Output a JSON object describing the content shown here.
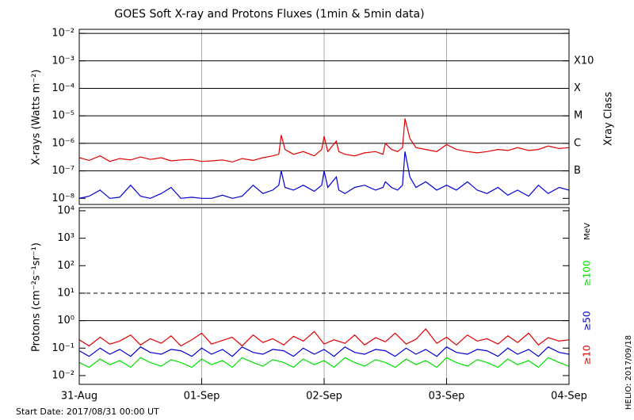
{
  "chart_data": [
    {
      "type": "line",
      "title": "GOES Soft X-ray and Protons Fluxes   (1min & 5min data)",
      "y_label": "X-rays (Watts m⁻²)",
      "right_label": "Xray Class",
      "log_y": true,
      "grid": true,
      "xlim": [
        0,
        4
      ],
      "ylim": [
        6e-09,
        0.014
      ],
      "yticks": [
        {
          "value": 0.01,
          "label": "10⁻²"
        },
        {
          "value": 0.001,
          "label": "10⁻³"
        },
        {
          "value": 0.0001,
          "label": "10⁻⁴"
        },
        {
          "value": 1e-05,
          "label": "10⁻⁵"
        },
        {
          "value": 1e-06,
          "label": "10⁻⁶"
        },
        {
          "value": 1e-07,
          "label": "10⁻⁷"
        },
        {
          "value": 1e-08,
          "label": "10⁻⁸"
        }
      ],
      "class_labels": [
        {
          "text": "X10",
          "y": 0.001
        },
        {
          "text": "X",
          "y": 0.0001
        },
        {
          "text": "M",
          "y": 1e-05
        },
        {
          "text": "C",
          "y": 1e-06
        },
        {
          "text": "B",
          "y": 1e-07
        }
      ],
      "x": [
        0,
        0.08,
        0.17,
        0.25,
        0.33,
        0.42,
        0.5,
        0.58,
        0.67,
        0.75,
        0.83,
        0.92,
        1.0,
        1.08,
        1.17,
        1.25,
        1.33,
        1.42,
        1.5,
        1.58,
        1.63,
        1.65,
        1.68,
        1.75,
        1.83,
        1.92,
        1.98,
        2.0,
        2.03,
        2.1,
        2.12,
        2.17,
        2.25,
        2.33,
        2.42,
        2.48,
        2.5,
        2.55,
        2.6,
        2.64,
        2.66,
        2.7,
        2.75,
        2.83,
        2.92,
        3.0,
        3.08,
        3.17,
        3.25,
        3.33,
        3.42,
        3.5,
        3.58,
        3.67,
        3.75,
        3.83,
        3.92,
        4.0
      ],
      "series": [
        {
          "color": "#e00000",
          "values": [
            3e-07,
            2.4e-07,
            3.5e-07,
            2.2e-07,
            2.8e-07,
            2.5e-07,
            3.2e-07,
            2.6e-07,
            3e-07,
            2.3e-07,
            2.5e-07,
            2.6e-07,
            2.2e-07,
            2.3e-07,
            2.5e-07,
            2.1e-07,
            2.8e-07,
            2.4e-07,
            3e-07,
            3.5e-07,
            4e-07,
            2e-06,
            6e-07,
            4e-07,
            5e-07,
            3.5e-07,
            6e-07,
            1.8e-06,
            5e-07,
            1.2e-06,
            5e-07,
            4e-07,
            3.5e-07,
            4.5e-07,
            5e-07,
            4e-07,
            1e-06,
            6e-07,
            5e-07,
            7e-07,
            8e-06,
            1.5e-06,
            7e-07,
            6e-07,
            5e-07,
            9e-07,
            6e-07,
            5e-07,
            4.5e-07,
            5e-07,
            6e-07,
            5.5e-07,
            7e-07,
            5.5e-07,
            6e-07,
            8e-07,
            6.5e-07,
            7e-07
          ]
        },
        {
          "color": "#0000d0",
          "values": [
            1e-08,
            1.2e-08,
            2e-08,
            1e-08,
            1.1e-08,
            3e-08,
            1.2e-08,
            1e-08,
            1.5e-08,
            2.5e-08,
            1e-08,
            1.1e-08,
            1e-08,
            1e-08,
            1.3e-08,
            1e-08,
            1.2e-08,
            3e-08,
            1.5e-08,
            2e-08,
            3e-08,
            1e-07,
            2.5e-08,
            2e-08,
            3e-08,
            1.8e-08,
            3e-08,
            1e-07,
            2.5e-08,
            6e-08,
            2e-08,
            1.5e-08,
            2.5e-08,
            3e-08,
            2e-08,
            2.5e-08,
            4e-08,
            2.5e-08,
            2e-08,
            3e-08,
            5e-07,
            6e-08,
            2.5e-08,
            4e-08,
            2e-08,
            3e-08,
            2e-08,
            4e-08,
            2e-08,
            1.5e-08,
            2.5e-08,
            1.3e-08,
            2e-08,
            1.2e-08,
            3e-08,
            1.5e-08,
            2.5e-08,
            2e-08
          ]
        }
      ]
    },
    {
      "type": "line",
      "y_label": "Protons (cm⁻²s⁻¹sr⁻¹)",
      "legend_title": "MeV",
      "log_y": true,
      "reference_lines": [
        {
          "value": 10,
          "style": "dashed"
        },
        {
          "value": 1,
          "style": "solid"
        }
      ],
      "xlim": [
        0,
        4
      ],
      "xticks": [
        {
          "value": 0,
          "label": "31-Aug"
        },
        {
          "value": 1,
          "label": "01-Sep"
        },
        {
          "value": 2,
          "label": "02-Sep"
        },
        {
          "value": 3,
          "label": "03-Sep"
        },
        {
          "value": 4,
          "label": "04-Sep"
        }
      ],
      "ylim": [
        0.0048,
        13000
      ],
      "yticks": [
        {
          "value": 10000,
          "label": "10⁴"
        },
        {
          "value": 1000,
          "label": "10³"
        },
        {
          "value": 100,
          "label": "10²"
        },
        {
          "value": 10,
          "label": "10¹"
        },
        {
          "value": 1,
          "label": "10⁰"
        },
        {
          "value": 0.1,
          "label": "10⁻¹"
        },
        {
          "value": 0.01,
          "label": "10⁻²"
        }
      ],
      "x": [
        0,
        0.08,
        0.17,
        0.25,
        0.33,
        0.42,
        0.5,
        0.58,
        0.67,
        0.75,
        0.83,
        0.92,
        1,
        1.08,
        1.17,
        1.25,
        1.33,
        1.42,
        1.5,
        1.58,
        1.67,
        1.75,
        1.83,
        1.92,
        2,
        2.08,
        2.17,
        2.25,
        2.33,
        2.42,
        2.5,
        2.58,
        2.67,
        2.75,
        2.83,
        2.92,
        3,
        3.08,
        3.17,
        3.25,
        3.33,
        3.42,
        3.5,
        3.58,
        3.67,
        3.75,
        3.83,
        3.92,
        4
      ],
      "series": [
        {
          "name": "≥100",
          "color": "#00e000",
          "values": [
            0.03,
            0.02,
            0.04,
            0.025,
            0.035,
            0.02,
            0.045,
            0.03,
            0.022,
            0.038,
            0.03,
            0.02,
            0.04,
            0.025,
            0.035,
            0.02,
            0.045,
            0.03,
            0.022,
            0.038,
            0.03,
            0.02,
            0.04,
            0.025,
            0.035,
            0.02,
            0.045,
            0.03,
            0.022,
            0.038,
            0.03,
            0.02,
            0.04,
            0.025,
            0.035,
            0.02,
            0.045,
            0.03,
            0.022,
            0.038,
            0.03,
            0.02,
            0.04,
            0.025,
            0.035,
            0.02,
            0.045,
            0.03,
            0.022
          ]
        },
        {
          "name": "≥50",
          "color": "#0000d0",
          "values": [
            0.08,
            0.05,
            0.1,
            0.06,
            0.09,
            0.05,
            0.11,
            0.07,
            0.06,
            0.09,
            0.08,
            0.05,
            0.1,
            0.06,
            0.09,
            0.05,
            0.11,
            0.07,
            0.06,
            0.09,
            0.08,
            0.05,
            0.1,
            0.06,
            0.09,
            0.05,
            0.11,
            0.07,
            0.06,
            0.09,
            0.08,
            0.05,
            0.1,
            0.06,
            0.09,
            0.05,
            0.11,
            0.07,
            0.06,
            0.09,
            0.08,
            0.05,
            0.1,
            0.06,
            0.09,
            0.05,
            0.11,
            0.07,
            0.06
          ]
        },
        {
          "name": "≥10",
          "color": "#e00000",
          "values": [
            0.2,
            0.12,
            0.25,
            0.14,
            0.18,
            0.3,
            0.13,
            0.22,
            0.15,
            0.28,
            0.12,
            0.2,
            0.35,
            0.14,
            0.19,
            0.25,
            0.12,
            0.3,
            0.16,
            0.22,
            0.13,
            0.27,
            0.18,
            0.4,
            0.14,
            0.2,
            0.15,
            0.3,
            0.13,
            0.24,
            0.17,
            0.35,
            0.14,
            0.21,
            0.5,
            0.15,
            0.25,
            0.13,
            0.3,
            0.18,
            0.22,
            0.14,
            0.28,
            0.16,
            0.35,
            0.13,
            0.24,
            0.18,
            0.2
          ]
        }
      ]
    }
  ],
  "footer": {
    "start_date": "Start Date: 2017/08/31 00:00 UT",
    "credit": "HELIO: 2017/09/18"
  }
}
